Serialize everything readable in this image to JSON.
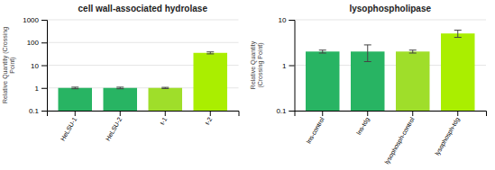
{
  "chart_data": [
    {
      "type": "bar",
      "title": "cell wall-associated hydrolase",
      "categories": [
        "HeLSU-1",
        "HeLSU-2",
        "t-1",
        "t-2"
      ],
      "values": [
        1.0,
        1.0,
        1.0,
        35.0
      ],
      "errors": [
        0.08,
        0.08,
        0.06,
        3.5
      ],
      "colors": [
        "#28b463",
        "#28b463",
        "#9fde2a",
        "#aaee00"
      ],
      "ylabel": "Relative Quantity (Crossing\nPoint)",
      "log": "y",
      "ylim": [
        0.1,
        1000
      ],
      "yticks": [
        0.1,
        1,
        10,
        100,
        1000
      ],
      "grid": true
    },
    {
      "type": "bar",
      "title": "lysophospholipase",
      "categories": [
        "lns-control",
        "lns-tdg",
        "lysophosph-control",
        "lysophosph-tdg"
      ],
      "values": [
        2.0,
        2.0,
        2.0,
        5.0
      ],
      "errors": [
        0.15,
        0.8,
        0.15,
        0.9
      ],
      "colors": [
        "#28b463",
        "#28b463",
        "#9fde2a",
        "#aaee00"
      ],
      "ylabel": "Relative Quantity\n(Crossing Point)",
      "log": "y",
      "ylim": [
        0.1,
        10
      ],
      "yticks": [
        0.1,
        1,
        10
      ],
      "grid": true
    }
  ]
}
